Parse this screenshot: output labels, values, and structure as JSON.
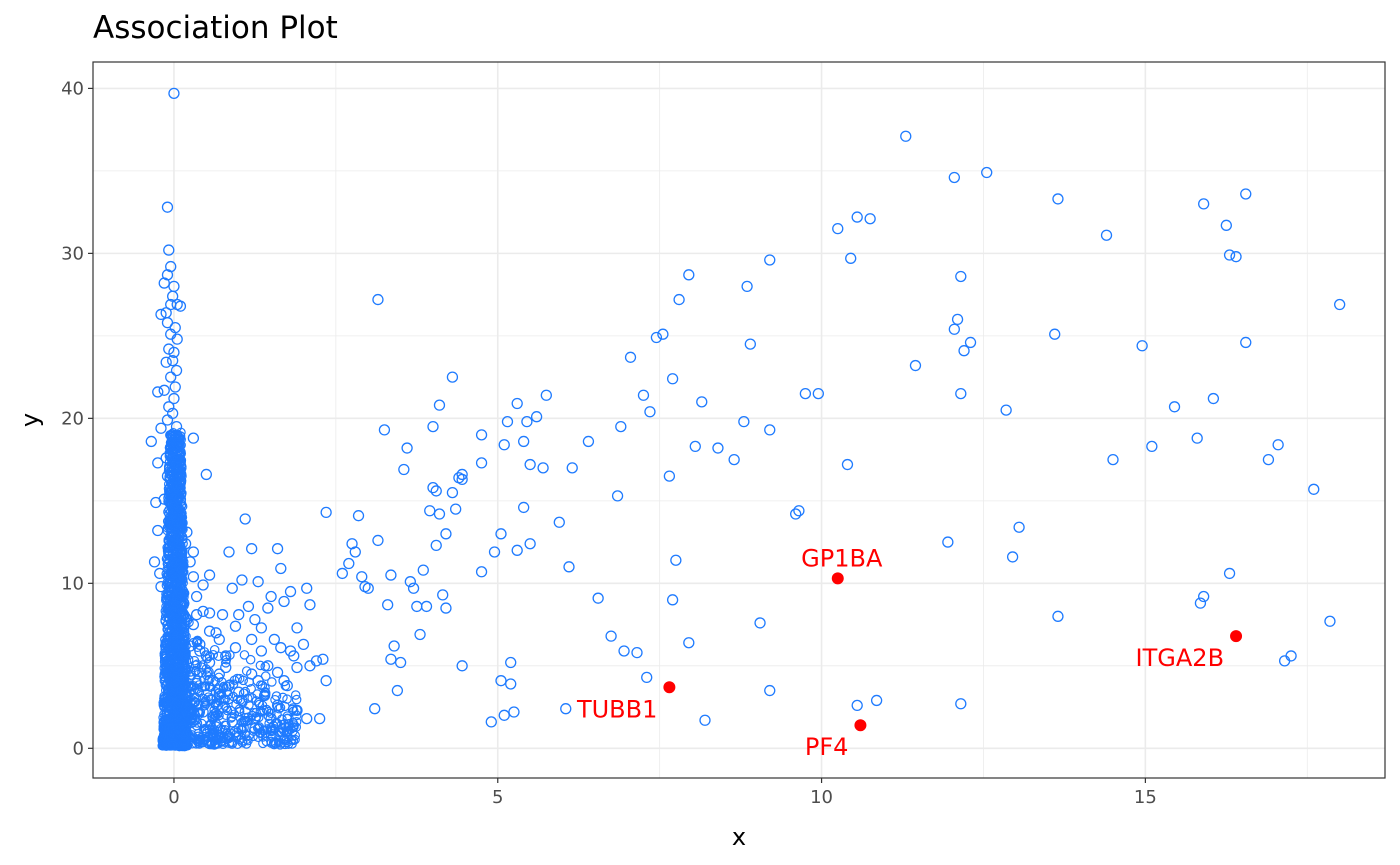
{
  "chart_data": {
    "type": "scatter",
    "title": "Association Plot",
    "xlabel": "x",
    "ylabel": "y",
    "xlim": [
      -1.25,
      18.7
    ],
    "ylim": [
      -1.8,
      41.6
    ],
    "x_ticks": [
      0,
      5,
      10,
      15
    ],
    "y_ticks": [
      0,
      10,
      20,
      30,
      40
    ],
    "x_tick_labels": [
      "0",
      "5",
      "10",
      "15"
    ],
    "y_tick_labels": [
      "0",
      "10",
      "20",
      "30",
      "40"
    ],
    "grid": true,
    "legend": "none",
    "colors": {
      "points": "#1f7bff",
      "highlight": "#ff0000",
      "grid": "#ebebeb",
      "panel_border": "#333333"
    },
    "highlighted": [
      {
        "label": "GP1BA",
        "x": 10.25,
        "y": 10.3,
        "label_position": "above"
      },
      {
        "label": "ITGA2B",
        "x": 16.4,
        "y": 6.8,
        "label_position": "below-left"
      },
      {
        "label": "TUBB1",
        "x": 7.65,
        "y": 3.7,
        "label_position": "below-left"
      },
      {
        "label": "PF4",
        "x": 10.6,
        "y": 1.4,
        "label_position": "below-left"
      }
    ],
    "cluster_note_points": {
      "spike_x_range": [
        -0.25,
        0.2
      ],
      "spike_y_range": [
        0.1,
        39.7
      ]
    },
    "points": [
      [
        0.0,
        39.7
      ],
      [
        -0.1,
        32.8
      ],
      [
        -0.08,
        30.2
      ],
      [
        -0.05,
        29.2
      ],
      [
        -0.1,
        28.7
      ],
      [
        -0.15,
        28.2
      ],
      [
        0.0,
        28.0
      ],
      [
        -0.02,
        27.4
      ],
      [
        -0.05,
        26.9
      ],
      [
        0.1,
        26.8
      ],
      [
        0.05,
        26.9
      ],
      [
        -0.12,
        26.4
      ],
      [
        -0.2,
        26.3
      ],
      [
        -0.1,
        25.8
      ],
      [
        0.02,
        25.5
      ],
      [
        -0.05,
        25.1
      ],
      [
        0.05,
        24.8
      ],
      [
        -0.08,
        24.2
      ],
      [
        0.0,
        24.0
      ],
      [
        -0.02,
        23.5
      ],
      [
        -0.12,
        23.4
      ],
      [
        0.04,
        22.9
      ],
      [
        -0.05,
        22.5
      ],
      [
        0.02,
        21.9
      ],
      [
        -0.15,
        21.7
      ],
      [
        -0.25,
        21.6
      ],
      [
        0.0,
        21.2
      ],
      [
        -0.08,
        20.7
      ],
      [
        -0.02,
        20.3
      ],
      [
        -0.1,
        19.9
      ],
      [
        0.04,
        19.5
      ],
      [
        -0.2,
        19.4
      ],
      [
        -0.35,
        18.6
      ],
      [
        0.0,
        18.4
      ],
      [
        -0.05,
        17.9
      ],
      [
        -0.12,
        17.6
      ],
      [
        0.02,
        17.2
      ],
      [
        -0.25,
        17.3
      ],
      [
        0.08,
        16.9
      ],
      [
        -0.1,
        16.5
      ],
      [
        0.0,
        16.1
      ],
      [
        -0.05,
        15.8
      ],
      [
        0.1,
        15.4
      ],
      [
        -0.15,
        15.1
      ],
      [
        -0.28,
        14.9
      ],
      [
        0.3,
        18.8
      ],
      [
        0.5,
        16.6
      ],
      [
        1.1,
        13.9
      ],
      [
        1.6,
        12.1
      ],
      [
        0.85,
        11.9
      ],
      [
        1.2,
        12.1
      ],
      [
        0.3,
        11.9
      ],
      [
        0.55,
        10.5
      ],
      [
        0.9,
        9.7
      ],
      [
        1.05,
        10.2
      ],
      [
        1.3,
        10.1
      ],
      [
        1.5,
        9.2
      ],
      [
        1.65,
        10.9
      ],
      [
        1.8,
        9.5
      ],
      [
        2.05,
        9.7
      ],
      [
        2.1,
        8.7
      ],
      [
        1.7,
        8.9
      ],
      [
        1.45,
        8.5
      ],
      [
        1.15,
        8.6
      ],
      [
        0.75,
        8.1
      ],
      [
        0.45,
        8.3
      ],
      [
        0.3,
        7.5
      ],
      [
        0.65,
        7.0
      ],
      [
        0.95,
        7.4
      ],
      [
        1.25,
        7.8
      ],
      [
        1.55,
        6.6
      ],
      [
        1.9,
        7.3
      ],
      [
        2.0,
        6.3
      ],
      [
        1.85,
        5.6
      ],
      [
        2.2,
        5.3
      ],
      [
        2.3,
        5.4
      ],
      [
        2.1,
        5.0
      ],
      [
        2.35,
        4.1
      ],
      [
        1.7,
        4.1
      ],
      [
        1.2,
        4.5
      ],
      [
        0.8,
        4.9
      ],
      [
        0.5,
        5.6
      ],
      [
        0.4,
        6.3
      ],
      [
        1.4,
        3.2
      ],
      [
        1.9,
        2.3
      ],
      [
        1.5,
        1.8
      ],
      [
        2.05,
        1.8
      ],
      [
        2.25,
        1.8
      ],
      [
        1.25,
        1.2
      ],
      [
        0.95,
        1.0
      ],
      [
        0.6,
        1.9
      ],
      [
        0.35,
        2.7
      ],
      [
        0.7,
        3.3
      ],
      [
        1.05,
        2.9
      ],
      [
        1.6,
        2.6
      ],
      [
        2.35,
        14.3
      ],
      [
        2.6,
        10.6
      ],
      [
        2.7,
        11.2
      ],
      [
        2.75,
        12.4
      ],
      [
        2.8,
        11.9
      ],
      [
        2.85,
        14.1
      ],
      [
        2.9,
        10.4
      ],
      [
        2.95,
        9.8
      ],
      [
        3.0,
        9.7
      ],
      [
        3.1,
        2.4
      ],
      [
        3.15,
        12.6
      ],
      [
        3.15,
        27.2
      ],
      [
        3.25,
        19.3
      ],
      [
        3.3,
        8.7
      ],
      [
        3.35,
        10.5
      ],
      [
        3.4,
        6.2
      ],
      [
        3.35,
        5.4
      ],
      [
        3.45,
        3.5
      ],
      [
        3.5,
        5.2
      ],
      [
        3.55,
        16.9
      ],
      [
        3.6,
        18.2
      ],
      [
        3.65,
        10.1
      ],
      [
        3.7,
        9.7
      ],
      [
        3.75,
        8.6
      ],
      [
        3.8,
        6.9
      ],
      [
        3.85,
        10.8
      ],
      [
        3.9,
        8.6
      ],
      [
        3.95,
        14.4
      ],
      [
        4.0,
        19.5
      ],
      [
        4.0,
        15.8
      ],
      [
        4.05,
        15.6
      ],
      [
        4.05,
        12.3
      ],
      [
        4.1,
        20.8
      ],
      [
        4.1,
        14.2
      ],
      [
        4.15,
        9.3
      ],
      [
        4.2,
        8.5
      ],
      [
        4.2,
        13.0
      ],
      [
        4.3,
        22.5
      ],
      [
        4.3,
        15.5
      ],
      [
        4.35,
        14.5
      ],
      [
        4.4,
        16.4
      ],
      [
        4.45,
        16.3
      ],
      [
        4.45,
        5.0
      ],
      [
        4.45,
        16.6
      ],
      [
        4.75,
        19.0
      ],
      [
        4.75,
        10.7
      ],
      [
        4.75,
        17.3
      ],
      [
        4.9,
        1.6
      ],
      [
        4.95,
        11.9
      ],
      [
        5.05,
        13.0
      ],
      [
        5.05,
        4.1
      ],
      [
        5.1,
        18.4
      ],
      [
        5.1,
        2.0
      ],
      [
        5.15,
        19.8
      ],
      [
        5.2,
        5.2
      ],
      [
        5.2,
        3.9
      ],
      [
        5.25,
        2.2
      ],
      [
        5.3,
        20.9
      ],
      [
        5.3,
        12.0
      ],
      [
        5.4,
        14.6
      ],
      [
        5.4,
        18.6
      ],
      [
        5.45,
        19.8
      ],
      [
        5.5,
        17.2
      ],
      [
        5.5,
        12.4
      ],
      [
        5.6,
        20.1
      ],
      [
        5.7,
        17.0
      ],
      [
        5.75,
        21.4
      ],
      [
        5.95,
        13.7
      ],
      [
        6.05,
        2.4
      ],
      [
        6.1,
        11.0
      ],
      [
        6.15,
        17.0
      ],
      [
        6.4,
        18.6
      ],
      [
        6.55,
        9.1
      ],
      [
        6.75,
        6.8
      ],
      [
        6.85,
        15.3
      ],
      [
        6.9,
        19.5
      ],
      [
        6.95,
        5.9
      ],
      [
        7.05,
        23.7
      ],
      [
        7.15,
        5.8
      ],
      [
        7.25,
        21.4
      ],
      [
        7.3,
        4.3
      ],
      [
        7.35,
        20.4
      ],
      [
        7.45,
        24.9
      ],
      [
        7.55,
        25.1
      ],
      [
        7.65,
        16.5
      ],
      [
        7.7,
        22.4
      ],
      [
        7.7,
        9.0
      ],
      [
        7.75,
        11.4
      ],
      [
        7.8,
        27.2
      ],
      [
        7.95,
        28.7
      ],
      [
        7.95,
        6.4
      ],
      [
        8.05,
        18.3
      ],
      [
        8.15,
        21.0
      ],
      [
        8.2,
        1.7
      ],
      [
        8.4,
        18.2
      ],
      [
        8.65,
        17.5
      ],
      [
        8.8,
        19.8
      ],
      [
        8.85,
        28.0
      ],
      [
        8.9,
        24.5
      ],
      [
        9.05,
        7.6
      ],
      [
        9.2,
        19.3
      ],
      [
        9.2,
        29.6
      ],
      [
        9.2,
        3.5
      ],
      [
        9.6,
        14.2
      ],
      [
        9.65,
        14.4
      ],
      [
        9.75,
        21.5
      ],
      [
        9.95,
        21.5
      ],
      [
        10.25,
        31.5
      ],
      [
        10.4,
        17.2
      ],
      [
        10.45,
        29.7
      ],
      [
        10.55,
        32.2
      ],
      [
        10.55,
        2.6
      ],
      [
        10.75,
        32.1
      ],
      [
        10.85,
        2.9
      ],
      [
        11.3,
        37.1
      ],
      [
        11.45,
        23.2
      ],
      [
        11.95,
        12.5
      ],
      [
        12.05,
        34.6
      ],
      [
        12.05,
        25.4
      ],
      [
        12.1,
        26.0
      ],
      [
        12.15,
        28.6
      ],
      [
        12.15,
        21.5
      ],
      [
        12.2,
        24.1
      ],
      [
        12.3,
        24.6
      ],
      [
        12.15,
        2.7
      ],
      [
        12.55,
        34.9
      ],
      [
        12.85,
        20.5
      ],
      [
        12.95,
        11.6
      ],
      [
        13.05,
        13.4
      ],
      [
        13.6,
        25.1
      ],
      [
        13.65,
        8.0
      ],
      [
        13.65,
        33.3
      ],
      [
        14.4,
        31.1
      ],
      [
        14.5,
        17.5
      ],
      [
        14.95,
        24.4
      ],
      [
        15.1,
        18.3
      ],
      [
        15.45,
        20.7
      ],
      [
        15.8,
        18.8
      ],
      [
        15.85,
        8.8
      ],
      [
        15.9,
        9.2
      ],
      [
        15.9,
        33.0
      ],
      [
        16.05,
        21.2
      ],
      [
        16.25,
        31.7
      ],
      [
        16.3,
        29.9
      ],
      [
        16.4,
        29.8
      ],
      [
        16.3,
        10.6
      ],
      [
        16.55,
        33.6
      ],
      [
        16.55,
        24.6
      ],
      [
        16.9,
        17.5
      ],
      [
        17.05,
        18.4
      ],
      [
        17.15,
        5.3
      ],
      [
        17.6,
        15.7
      ],
      [
        17.85,
        7.7
      ],
      [
        18.0,
        26.9
      ],
      [
        17.25,
        5.6
      ],
      [
        -0.3,
        11.3
      ],
      [
        -0.25,
        13.2
      ],
      [
        -0.2,
        9.8
      ],
      [
        -0.22,
        10.6
      ],
      [
        0.2,
        13.1
      ],
      [
        0.25,
        11.3
      ],
      [
        0.35,
        9.2
      ],
      [
        0.3,
        10.4
      ],
      [
        0.45,
        9.9
      ],
      [
        0.55,
        8.2
      ],
      [
        0.2,
        7.8
      ],
      [
        0.15,
        8.8
      ],
      [
        0.12,
        9.6
      ],
      [
        0.08,
        10.9
      ],
      [
        0.18,
        12.4
      ],
      [
        0.1,
        13.8
      ],
      [
        0.05,
        14.5
      ],
      [
        -0.05,
        12.8
      ],
      [
        0.1,
        11.8
      ],
      [
        0.15,
        6.8
      ],
      [
        0.25,
        6.2
      ],
      [
        0.4,
        5.9
      ],
      [
        0.55,
        5.2
      ],
      [
        0.7,
        4.5
      ],
      [
        0.85,
        3.8
      ],
      [
        1.0,
        3.4
      ],
      [
        1.1,
        2.2
      ],
      [
        0.9,
        1.6
      ],
      [
        0.75,
        2.5
      ],
      [
        0.65,
        1.3
      ],
      [
        0.5,
        1.1
      ],
      [
        0.45,
        2.2
      ],
      [
        0.3,
        3.6
      ],
      [
        0.6,
        4.1
      ],
      [
        0.8,
        5.6
      ],
      [
        0.95,
        6.1
      ],
      [
        1.35,
        5.9
      ],
      [
        1.2,
        6.6
      ],
      [
        1.45,
        5.0
      ],
      [
        1.3,
        4.1
      ],
      [
        1.6,
        4.6
      ],
      [
        1.75,
        3.8
      ],
      [
        1.9,
        4.9
      ],
      [
        1.8,
        5.9
      ],
      [
        1.65,
        6.1
      ],
      [
        1.0,
        8.1
      ],
      [
        1.35,
        7.3
      ],
      [
        0.7,
        6.6
      ],
      [
        0.55,
        7.1
      ],
      [
        0.35,
        8.1
      ]
    ]
  }
}
